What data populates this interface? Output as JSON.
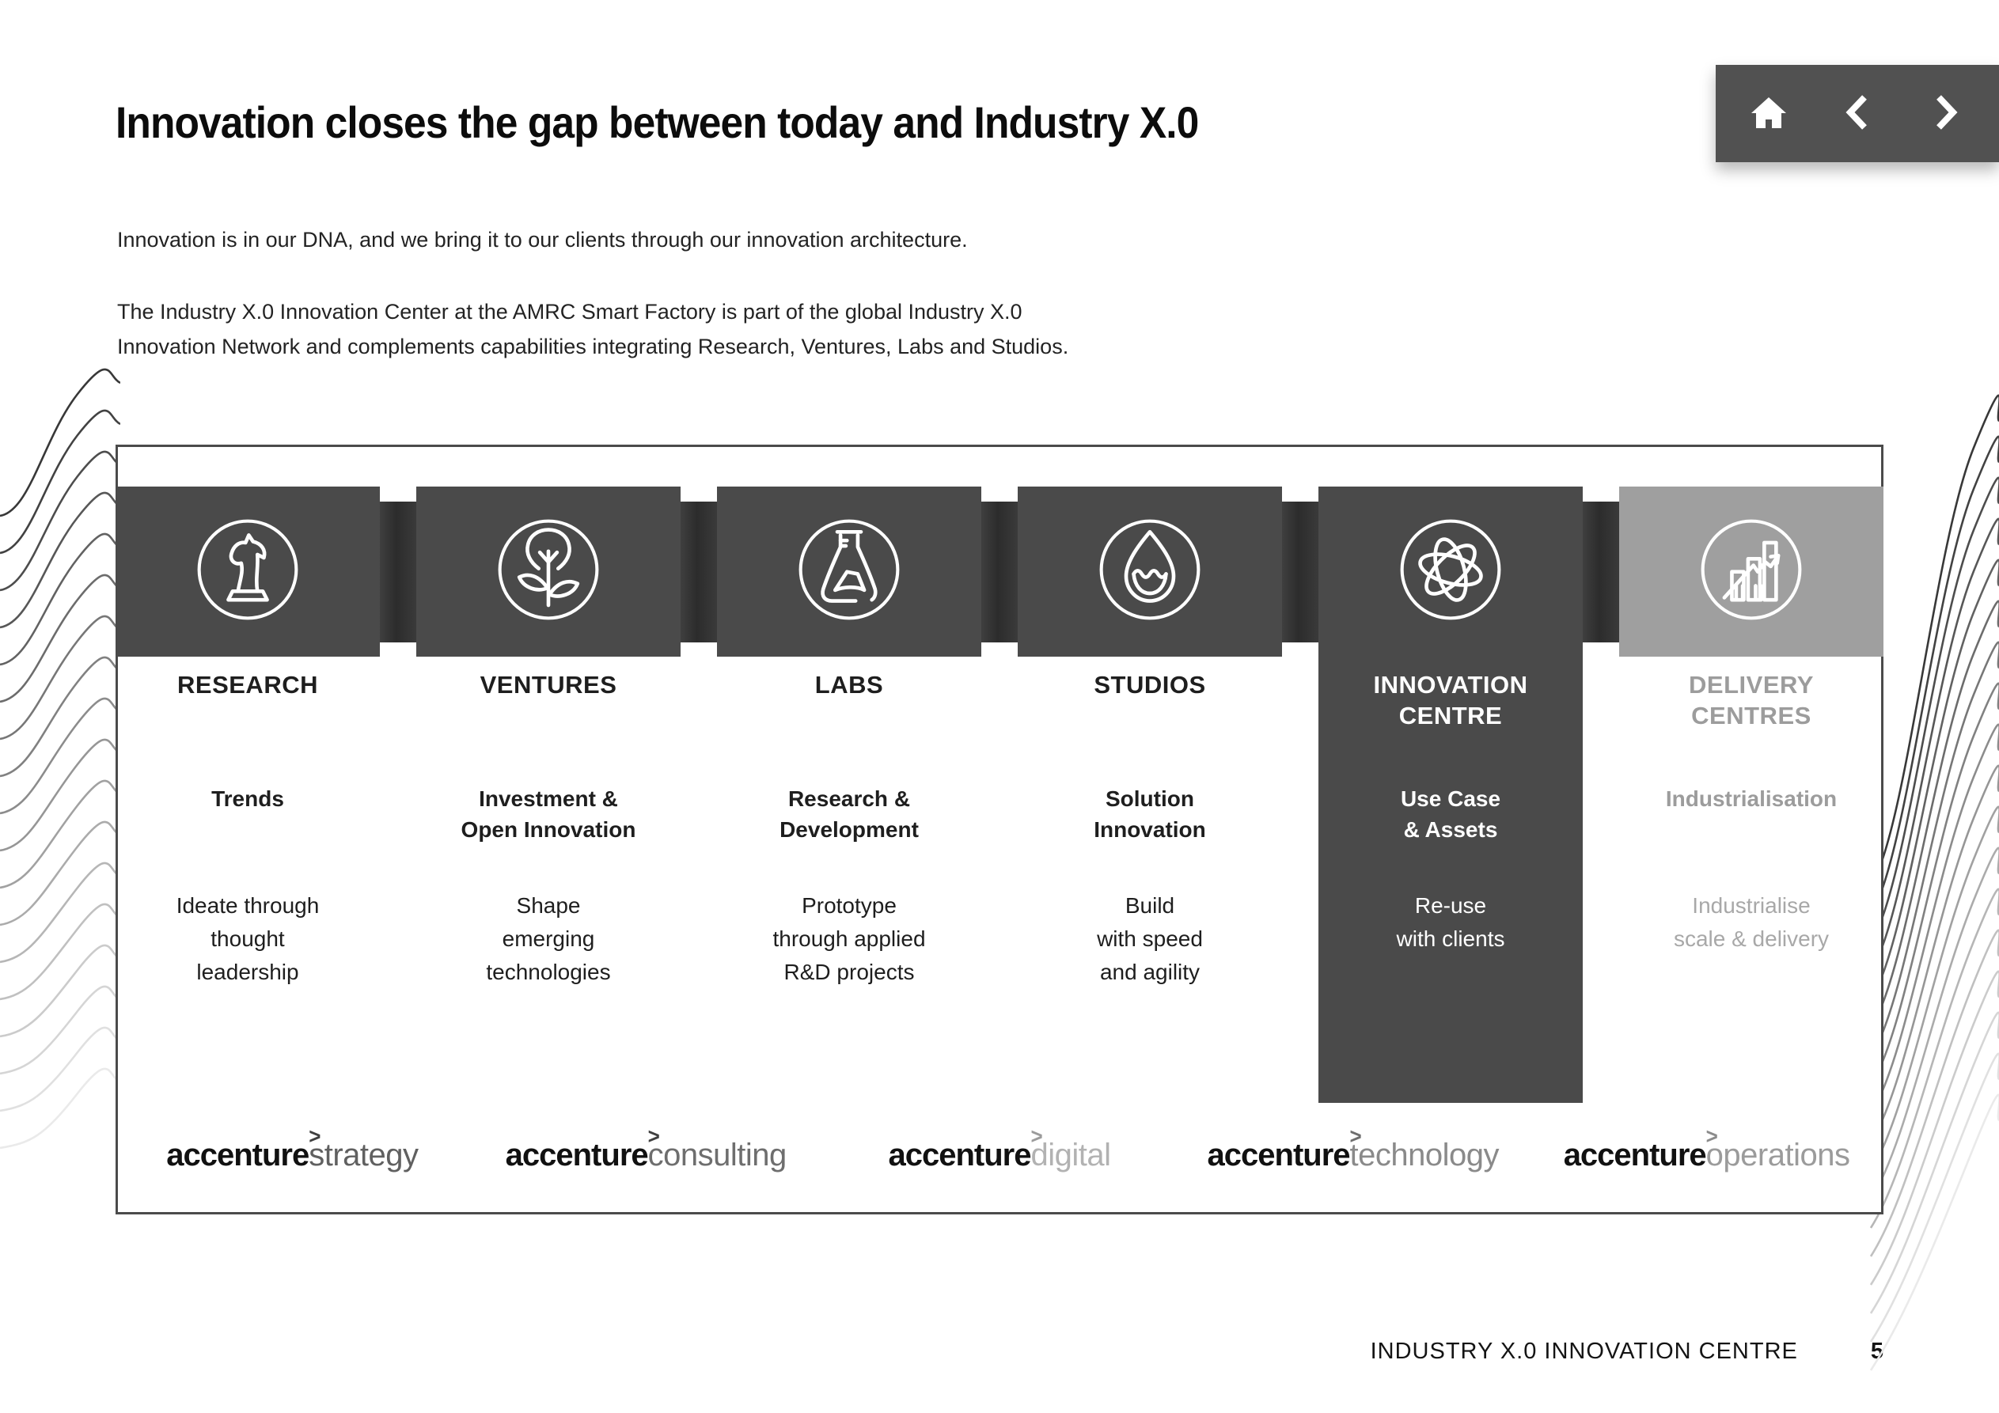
{
  "slide": {
    "title": "Innovation closes the gap between today and Industry X.0",
    "intro": "Innovation is in our DNA, and we bring it to our clients through our innovation architecture.",
    "body_lines": [
      "The Industry X.0 Innovation Center at the AMRC Smart Factory is part of the global Industry X.0",
      "Innovation Network and complements capabilities integrating Research, Ventures, Labs and Studios."
    ]
  },
  "nav": {
    "home_icon": "home-icon",
    "prev_icon": "chevron-left-icon",
    "next_icon": "chevron-right-icon"
  },
  "columns": [
    {
      "id": "research",
      "icon": "chess-knight-icon",
      "title_lines": [
        "RESEARCH"
      ],
      "subtitle_lines": [
        "Trends"
      ],
      "description_lines": [
        "Ideate through",
        "thought",
        "leadership"
      ]
    },
    {
      "id": "ventures",
      "icon": "lightbulb-plant-icon",
      "title_lines": [
        "VENTURES"
      ],
      "subtitle_lines": [
        "Investment &",
        "Open Innovation"
      ],
      "description_lines": [
        "Shape",
        "emerging",
        "technologies"
      ]
    },
    {
      "id": "labs",
      "icon": "flask-icon",
      "title_lines": [
        "LABS"
      ],
      "subtitle_lines": [
        "Research &",
        "Development"
      ],
      "description_lines": [
        "Prototype",
        "through applied",
        "R&D projects"
      ]
    },
    {
      "id": "studios",
      "icon": "droplet-icon",
      "title_lines": [
        "STUDIOS"
      ],
      "subtitle_lines": [
        "Solution",
        "Innovation"
      ],
      "description_lines": [
        "Build",
        "with speed",
        "and agility"
      ]
    },
    {
      "id": "innovation-centre",
      "icon": "atom-icon",
      "highlighted": true,
      "title_lines": [
        "INNOVATION",
        "CENTRE"
      ],
      "subtitle_lines": [
        "Use Case",
        "& Assets"
      ],
      "description_lines": [
        "Re-use",
        "with clients"
      ]
    },
    {
      "id": "delivery-centres",
      "icon": "bar-chart-growth-icon",
      "muted": true,
      "title_lines": [
        "DELIVERY",
        "CENTRES"
      ],
      "subtitle_lines": [
        "Industrialisation"
      ],
      "description_lines": [
        "Industrialise",
        "scale & delivery"
      ]
    }
  ],
  "logo_chevron_glyph": ">",
  "logos": [
    {
      "brand": "accenture",
      "division": "strategy"
    },
    {
      "brand": "accenture",
      "division": "consulting"
    },
    {
      "brand": "accenture",
      "division": "digital"
    },
    {
      "brand": "accenture",
      "division": "technology"
    },
    {
      "brand": "accenture",
      "division": "operations"
    }
  ],
  "footer": {
    "label": "INDUSTRY X.0 INNOVATION CENTRE",
    "page": "5"
  },
  "colors": {
    "box_dark": "#4a4a4a",
    "box_muted": "#9f9f9f",
    "connector_dark": "#2c2c2c",
    "nav_bg": "#515151",
    "text_dark": "#1e1e1e",
    "text_muted": "#9c9c9c",
    "icon_stroke": "#ffffff",
    "logo_division_shades": [
      "#606060",
      "#6e6e6e",
      "#b2b2b2",
      "#8a8a8a",
      "#9b9b9b"
    ]
  }
}
